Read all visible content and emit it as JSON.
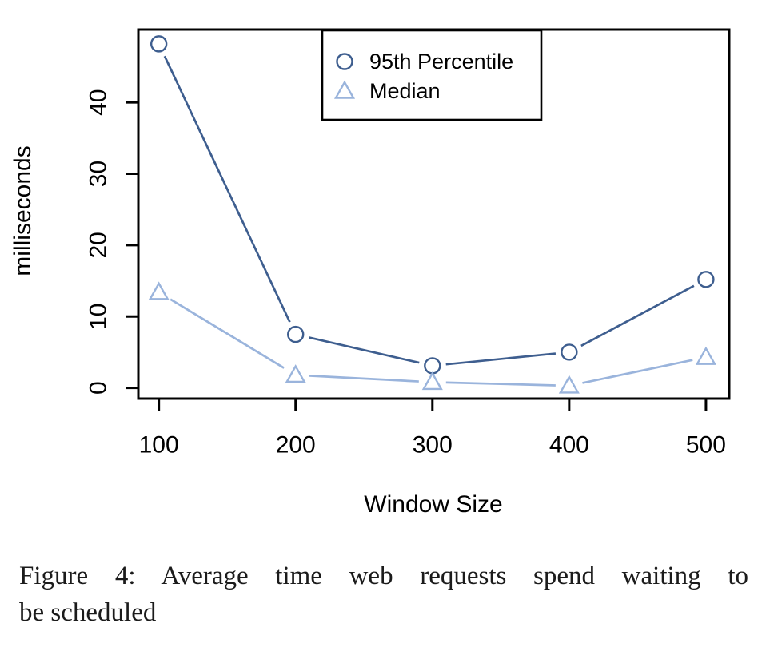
{
  "figure": {
    "caption_lines": {
      "line1": "Figure 4: Average time web requests spend waiting to",
      "line2": "be scheduled"
    }
  },
  "chart_data": {
    "type": "line",
    "title": "",
    "xlabel": "Window Size",
    "ylabel": "milliseconds",
    "x": [
      100,
      200,
      300,
      400,
      500
    ],
    "xticks": [
      "100",
      "200",
      "300",
      "400",
      "500"
    ],
    "yticks": [
      "0",
      "10",
      "20",
      "30",
      "40"
    ],
    "xlim": [
      85,
      517
    ],
    "ylim": [
      -1.5,
      50.2
    ],
    "grid": false,
    "legend_position": "inside-top-center-right",
    "axis_color": "#000000",
    "series": [
      {
        "name": "95th Percentile",
        "marker": "circle",
        "color": "#3E5E8F",
        "values": [
          48.2,
          7.5,
          3.1,
          5.0,
          15.2
        ]
      },
      {
        "name": "Median",
        "marker": "triangle",
        "color": "#9AB4DC",
        "values": [
          13.4,
          1.8,
          0.8,
          0.3,
          4.3
        ]
      }
    ]
  }
}
